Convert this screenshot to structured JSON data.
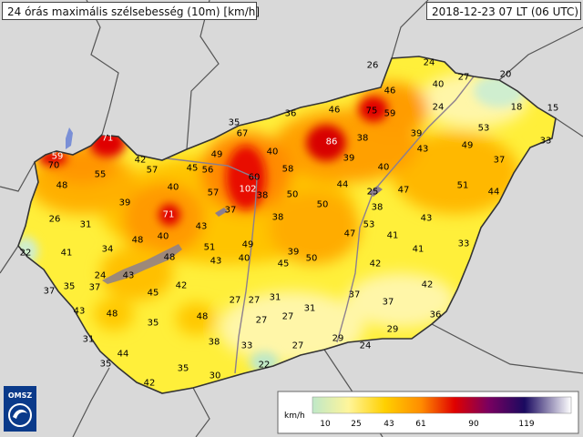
{
  "header": {
    "title": "24 órás maximális szélsebesség (10m) [km/h]",
    "datetime": "2018-12-23 07 LT (06 UTC)"
  },
  "logo": {
    "text": "OMSZ"
  },
  "legend": {
    "unit": "km/h",
    "ticks": [
      "10",
      "25",
      "43",
      "61",
      "90",
      "119"
    ],
    "colors": [
      "#bfe8c8",
      "#fff59a",
      "#ffd000",
      "#ff8c00",
      "#e00000",
      "#7a0060",
      "#1a0a60",
      "#ffffff"
    ]
  },
  "colors": {
    "background": "#d7d7d7",
    "country_fill": "#ffef3a",
    "border_line": "#444444",
    "lake_fill": "#7a8fd6"
  },
  "stations": [
    {
      "v": "26"
    },
    {
      "v": "24"
    },
    {
      "v": "27"
    },
    {
      "v": "20"
    },
    {
      "v": "46"
    },
    {
      "v": "40"
    },
    {
      "v": "18"
    },
    {
      "v": "15"
    },
    {
      "v": "36"
    },
    {
      "v": "75"
    },
    {
      "v": "59"
    },
    {
      "v": "24"
    },
    {
      "v": "46"
    },
    {
      "v": "35"
    },
    {
      "v": "67"
    },
    {
      "v": "53"
    },
    {
      "v": "71"
    },
    {
      "v": "86"
    },
    {
      "v": "38"
    },
    {
      "v": "39"
    },
    {
      "v": "40"
    },
    {
      "v": "49"
    },
    {
      "v": "33"
    },
    {
      "v": "43"
    },
    {
      "v": "59"
    },
    {
      "v": "70"
    },
    {
      "v": "42"
    },
    {
      "v": "49"
    },
    {
      "v": "39"
    },
    {
      "v": "58"
    },
    {
      "v": "37"
    },
    {
      "v": "55"
    },
    {
      "v": "57"
    },
    {
      "v": "45"
    },
    {
      "v": "56"
    },
    {
      "v": "60"
    },
    {
      "v": "40"
    },
    {
      "v": "48"
    },
    {
      "v": "40"
    },
    {
      "v": "57"
    },
    {
      "v": "102"
    },
    {
      "v": "38"
    },
    {
      "v": "50"
    },
    {
      "v": "44"
    },
    {
      "v": "25"
    },
    {
      "v": "47"
    },
    {
      "v": "51"
    },
    {
      "v": "44"
    },
    {
      "v": "39"
    },
    {
      "v": "37"
    },
    {
      "v": "50"
    },
    {
      "v": "38"
    },
    {
      "v": "43"
    },
    {
      "v": "26"
    },
    {
      "v": "71"
    },
    {
      "v": "43"
    },
    {
      "v": "38"
    },
    {
      "v": "53"
    },
    {
      "v": "31"
    },
    {
      "v": "48"
    },
    {
      "v": "40"
    },
    {
      "v": "47"
    },
    {
      "v": "41"
    },
    {
      "v": "33"
    },
    {
      "v": "22"
    },
    {
      "v": "41"
    },
    {
      "v": "34"
    },
    {
      "v": "51"
    },
    {
      "v": "49"
    },
    {
      "v": "39"
    },
    {
      "v": "41"
    },
    {
      "v": "48"
    },
    {
      "v": "43"
    },
    {
      "v": "45"
    },
    {
      "v": "50"
    },
    {
      "v": "42"
    },
    {
      "v": "40"
    },
    {
      "v": "24"
    },
    {
      "v": "43"
    },
    {
      "v": "37"
    },
    {
      "v": "35"
    },
    {
      "v": "37"
    },
    {
      "v": "45"
    },
    {
      "v": "42"
    },
    {
      "v": "27"
    },
    {
      "v": "31"
    },
    {
      "v": "37"
    },
    {
      "v": "42"
    },
    {
      "v": "43"
    },
    {
      "v": "48"
    },
    {
      "v": "27"
    },
    {
      "v": "31"
    },
    {
      "v": "37"
    },
    {
      "v": "36"
    },
    {
      "v": "35"
    },
    {
      "v": "48"
    },
    {
      "v": "27"
    },
    {
      "v": "27"
    },
    {
      "v": "29"
    },
    {
      "v": "31"
    },
    {
      "v": "38"
    },
    {
      "v": "33"
    },
    {
      "v": "44"
    },
    {
      "v": "29"
    },
    {
      "v": "27"
    },
    {
      "v": "24"
    },
    {
      "v": "35"
    },
    {
      "v": "35"
    },
    {
      "v": "22"
    },
    {
      "v": "42"
    },
    {
      "v": "30"
    }
  ]
}
